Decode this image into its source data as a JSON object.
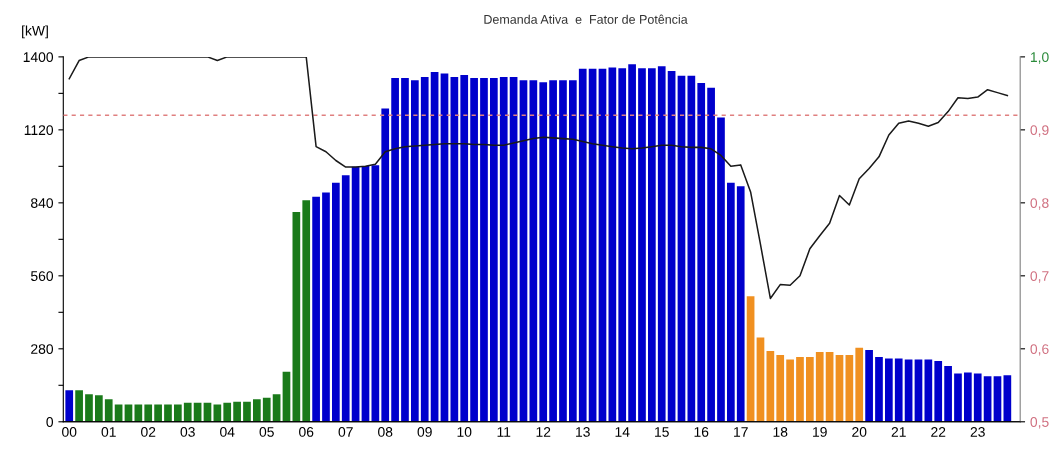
{
  "chart_data": {
    "type": "bar",
    "title": "Demanda Ativa  e  Fator de Potência",
    "ylabel": "[kW]",
    "categories": [
      "00",
      null,
      null,
      null,
      "01",
      null,
      null,
      null,
      "02",
      null,
      null,
      null,
      "03",
      null,
      null,
      null,
      "04",
      null,
      null,
      null,
      "05",
      null,
      null,
      null,
      "06",
      null,
      null,
      null,
      "07",
      null,
      null,
      null,
      "08",
      null,
      null,
      null,
      "09",
      null,
      null,
      null,
      "10",
      null,
      null,
      null,
      "11",
      null,
      null,
      null,
      "12",
      null,
      null,
      null,
      "13",
      null,
      null,
      null,
      "14",
      null,
      null,
      null,
      "15",
      null,
      null,
      null,
      "16",
      null,
      null,
      null,
      "17",
      null,
      null,
      null,
      "18",
      null,
      null,
      null,
      "19",
      null,
      null,
      null,
      "20",
      null,
      null,
      null,
      "21",
      null,
      null,
      null,
      "22",
      null,
      null,
      null,
      "23",
      null,
      null,
      null
    ],
    "series": [
      {
        "values": [
          121,
          121,
          106,
          102,
          86,
          66,
          66,
          66,
          66,
          66,
          66,
          66,
          73,
          73,
          73,
          66,
          73,
          77,
          77,
          86,
          92,
          106,
          192,
          805,
          850,
          863,
          880,
          917,
          946,
          978,
          981,
          984,
          1202,
          1319,
          1319,
          1310,
          1323,
          1342,
          1336,
          1323,
          1330,
          1319,
          1319,
          1319,
          1323,
          1323,
          1310,
          1310,
          1303,
          1310,
          1310,
          1310,
          1354,
          1354,
          1354,
          1359,
          1356,
          1372,
          1356,
          1356,
          1364,
          1346,
          1328,
          1328,
          1300,
          1282,
          1167,
          917,
          904,
          482,
          323,
          272,
          256,
          239,
          249,
          249,
          268,
          268,
          256,
          256,
          284,
          275,
          249,
          243,
          243,
          239,
          239,
          239,
          233,
          214,
          185,
          189,
          185,
          175,
          175,
          179
        ],
        "colors": [
          "#0000cc",
          "#1a7a1a",
          "#1a7a1a",
          "#1a7a1a",
          "#1a7a1a",
          "#1a7a1a",
          "#1a7a1a",
          "#1a7a1a",
          "#1a7a1a",
          "#1a7a1a",
          "#1a7a1a",
          "#1a7a1a",
          "#1a7a1a",
          "#1a7a1a",
          "#1a7a1a",
          "#1a7a1a",
          "#1a7a1a",
          "#1a7a1a",
          "#1a7a1a",
          "#1a7a1a",
          "#1a7a1a",
          "#1a7a1a",
          "#1a7a1a",
          "#1a7a1a",
          "#1a7a1a",
          "#0000cc",
          "#0000cc",
          "#0000cc",
          "#0000cc",
          "#0000cc",
          "#0000cc",
          "#0000cc",
          "#0000cc",
          "#0000cc",
          "#0000cc",
          "#0000cc",
          "#0000cc",
          "#0000cc",
          "#0000cc",
          "#0000cc",
          "#0000cc",
          "#0000cc",
          "#0000cc",
          "#0000cc",
          "#0000cc",
          "#0000cc",
          "#0000cc",
          "#0000cc",
          "#0000cc",
          "#0000cc",
          "#0000cc",
          "#0000cc",
          "#0000cc",
          "#0000cc",
          "#0000cc",
          "#0000cc",
          "#0000cc",
          "#0000cc",
          "#0000cc",
          "#0000cc",
          "#0000cc",
          "#0000cc",
          "#0000cc",
          "#0000cc",
          "#0000cc",
          "#0000cc",
          "#0000cc",
          "#0000cc",
          "#0000cc",
          "#f09020",
          "#f09020",
          "#f09020",
          "#f09020",
          "#f09020",
          "#f09020",
          "#f09020",
          "#f09020",
          "#f09020",
          "#f09020",
          "#f09020",
          "#f09020",
          "#0000cc",
          "#0000cc",
          "#0000cc",
          "#0000cc",
          "#0000cc",
          "#0000cc",
          "#0000cc",
          "#0000cc",
          "#0000cc",
          "#0000cc",
          "#0000cc",
          "#0000cc",
          "#0000cc",
          "#0000cc",
          "#0000cc"
        ]
      },
      {
        "type": "line",
        "axis": "y2",
        "color": "#1a1a1a",
        "values": [
          0.97,
          0.995,
          1.0,
          1.0,
          1.0,
          1.0,
          1.0,
          1.0,
          1.0,
          1.0,
          1.0,
          1.0,
          1.0,
          1.0,
          1.0,
          0.995,
          1.0,
          1.0,
          1.0,
          1.0,
          1.0,
          1.0,
          1.0,
          1.0,
          1.0,
          0.877,
          0.87,
          0.858,
          0.849,
          0.849,
          0.85,
          0.853,
          0.87,
          0.874,
          0.877,
          0.878,
          0.879,
          0.88,
          0.881,
          0.881,
          0.881,
          0.88,
          0.88,
          0.879,
          0.879,
          0.882,
          0.885,
          0.888,
          0.89,
          0.889,
          0.888,
          0.887,
          0.884,
          0.881,
          0.879,
          0.877,
          0.875,
          0.874,
          0.875,
          0.877,
          0.879,
          0.879,
          0.877,
          0.876,
          0.876,
          0.874,
          0.865,
          0.85,
          0.852,
          0.815,
          0.743,
          0.669,
          0.688,
          0.687,
          0.7,
          0.737,
          0.755,
          0.772,
          0.81,
          0.797,
          0.833,
          0.847,
          0.863,
          0.893,
          0.909,
          0.912,
          0.909,
          0.905,
          0.91,
          0.925,
          0.944,
          0.943,
          0.945,
          0.955,
          0.951,
          0.947
        ]
      }
    ],
    "ylim": [
      0,
      1400
    ],
    "yticks": [
      0,
      {
        "value": 140,
        "label": null
      },
      280,
      {
        "value": 420,
        "label": null
      },
      560,
      {
        "value": 700,
        "label": null
      },
      840,
      {
        "value": 980,
        "label": null
      },
      1120,
      {
        "value": 1260,
        "label": null
      },
      1400
    ],
    "y2lim": [
      0.5,
      1.0
    ],
    "y2ticks": [
      {
        "value": 0.5,
        "label": "0,5"
      },
      {
        "value": 0.6,
        "label": "0,6"
      },
      {
        "value": 0.7,
        "label": "0,7"
      },
      {
        "value": 0.8,
        "label": "0,8"
      },
      {
        "value": 0.9,
        "label": "0,9"
      },
      {
        "value": 1.0,
        "label": "1,0"
      }
    ],
    "ref_lines": [
      {
        "axis": "y2",
        "value": 0.92,
        "color": "#e08080",
        "line_style": "dashed"
      }
    ],
    "grid": false,
    "legend": false
  }
}
